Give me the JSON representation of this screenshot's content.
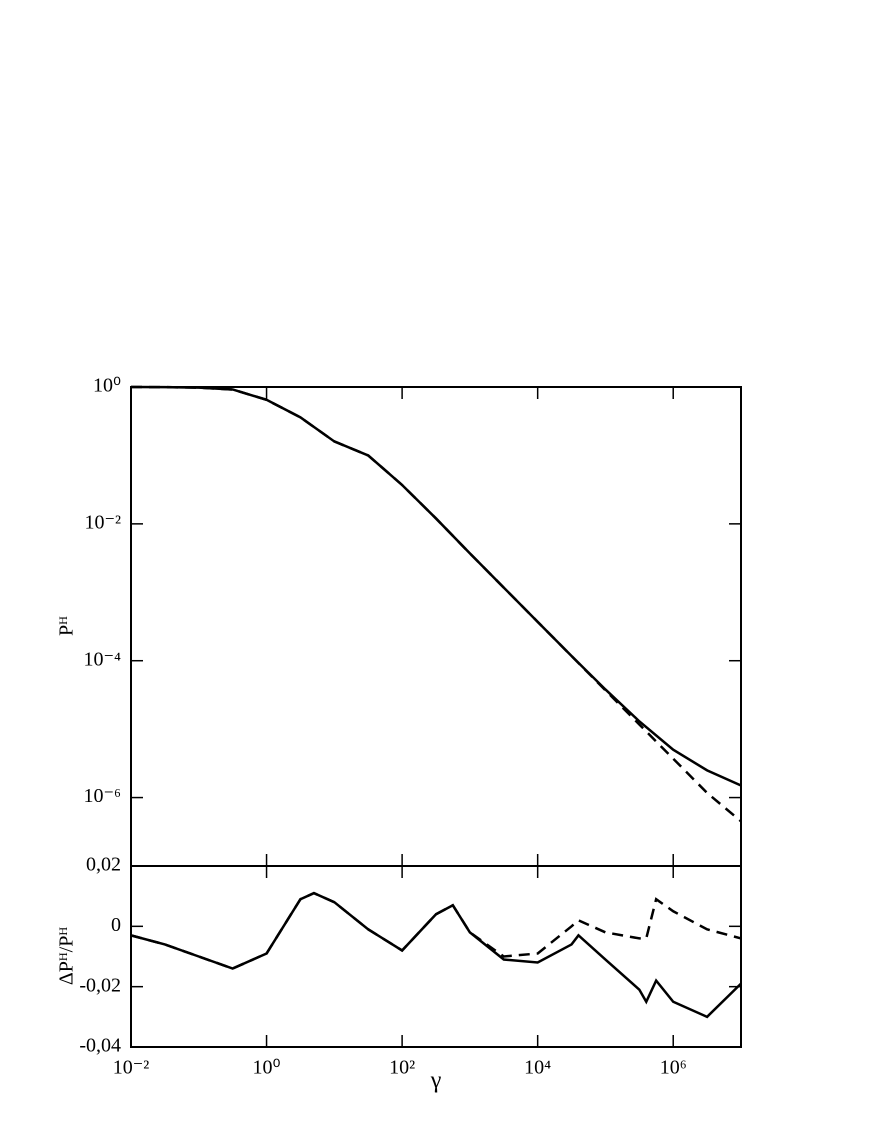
{
  "chart_data": [
    {
      "type": "line",
      "xscale": "log",
      "yscale": "log",
      "ylabel": "Pᴴ",
      "xlim": [
        0.01,
        10000000
      ],
      "ylim": [
        1e-07,
        1
      ],
      "yticks": [
        {
          "value": 1,
          "label": "10⁰"
        },
        {
          "value": 0.01,
          "label": "10⁻²"
        },
        {
          "value": 0.0001,
          "label": "10⁻⁴"
        },
        {
          "value": 1e-06,
          "label": "10⁻⁶"
        }
      ],
      "x": [
        0.01,
        0.0316,
        0.1,
        0.316,
        1,
        3.16,
        10,
        31.6,
        100,
        316,
        1000,
        3162,
        10000,
        31623,
        100000,
        316228,
        1000000,
        3162278,
        10000000
      ],
      "series": [
        {
          "color": "#000000",
          "line_style": "solid",
          "values": [
            1.0,
            0.995,
            0.98,
            0.92,
            0.65,
            0.36,
            0.16,
            0.1,
            0.037,
            0.012,
            0.0037,
            0.00117,
            0.00037,
            0.000117,
            3.8e-05,
            1.3e-05,
            5e-06,
            2.5e-06,
            1.5e-06
          ]
        },
        {
          "color": "#000000",
          "line_style": "dashed",
          "values": [
            1.0,
            0.995,
            0.98,
            0.92,
            0.65,
            0.36,
            0.16,
            0.1,
            0.037,
            0.012,
            0.0037,
            0.00117,
            0.00037,
            0.000117,
            3.7e-05,
            1.17e-05,
            3.7e-06,
            1.17e-06,
            4.5e-07
          ]
        }
      ]
    },
    {
      "type": "line",
      "xscale": "log",
      "yscale": "linear",
      "ylabel": "ΔPᴴ/Pᴴ",
      "xlabel": "γ",
      "xlim": [
        0.01,
        10000000
      ],
      "ylim": [
        -0.04,
        0.02
      ],
      "xticks": [
        {
          "value": 0.01,
          "label": "10⁻²"
        },
        {
          "value": 1,
          "label": "10⁰"
        },
        {
          "value": 100,
          "label": "10²"
        },
        {
          "value": 10000,
          "label": "10⁴"
        },
        {
          "value": 1000000,
          "label": "10⁶"
        }
      ],
      "yticks": [
        {
          "value": 0.02,
          "label": "0,02"
        },
        0,
        {
          "value": -0.02,
          "label": "-0,02"
        },
        {
          "value": -0.04,
          "label": "-0,04"
        }
      ],
      "x": [
        0.01,
        0.0316,
        0.1,
        0.316,
        1,
        3.16,
        5,
        10,
        31.6,
        100,
        316,
        560,
        1000,
        3162,
        10000,
        31623,
        40000,
        100000,
        316228,
        400000,
        560000,
        1000000,
        3162278,
        10000000
      ],
      "series": [
        {
          "color": "#000000",
          "line_style": "solid",
          "values": [
            -0.003,
            -0.006,
            -0.01,
            -0.014,
            -0.009,
            0.009,
            0.011,
            0.008,
            -0.001,
            -0.008,
            0.004,
            0.007,
            -0.002,
            -0.011,
            -0.012,
            -0.006,
            -0.003,
            -0.011,
            -0.021,
            -0.025,
            -0.018,
            -0.025,
            -0.03,
            -0.019
          ]
        },
        {
          "color": "#000000",
          "line_style": "dashed",
          "values": [
            -0.003,
            -0.006,
            -0.01,
            -0.014,
            -0.009,
            0.009,
            0.011,
            0.008,
            -0.001,
            -0.008,
            0.004,
            0.007,
            -0.002,
            -0.01,
            -0.009,
            0.0,
            0.002,
            -0.002,
            -0.004,
            -0.004,
            0.009,
            0.005,
            -0.001,
            -0.004
          ]
        }
      ]
    }
  ]
}
